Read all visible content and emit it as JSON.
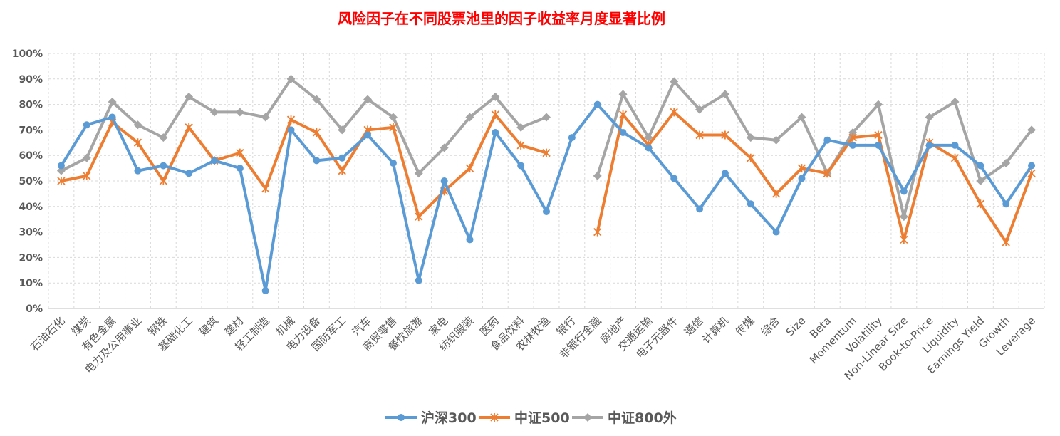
{
  "chart_data": {
    "type": "line",
    "title": "风险因子在不同股票池里的因子收益率月度显著比例",
    "categories": [
      "石油石化",
      "煤炭",
      "有色金属",
      "电力及公用事业",
      "钢铁",
      "基础化工",
      "建筑",
      "建材",
      "轻工制造",
      "机械",
      "电力设备",
      "国防军工",
      "汽车",
      "商贸零售",
      "餐饮旅游",
      "家电",
      "纺织服装",
      "医药",
      "食品饮料",
      "农林牧渔",
      "银行",
      "非银行金融",
      "房地产",
      "交通运输",
      "电子元器件",
      "通信",
      "计算机",
      "传媒",
      "综合",
      "Size",
      "Beta",
      "Momentum",
      "Volatility",
      "Non-Linear Size",
      "Book-to-Price",
      "Liquidity",
      "Earnings Yield",
      "Growth",
      "Leverage"
    ],
    "y_ticks": [
      "0%",
      "10%",
      "20%",
      "30%",
      "40%",
      "50%",
      "60%",
      "70%",
      "80%",
      "90%",
      "100%"
    ],
    "ylim": [
      0,
      100
    ],
    "grid": true,
    "legend_position": "bottom",
    "series": [
      {
        "name": "沪深300",
        "color": "#5b9bd5",
        "marker": "circle",
        "values": [
          56,
          72,
          75,
          54,
          56,
          53,
          58,
          55,
          7,
          70,
          58,
          59,
          68,
          57,
          11,
          50,
          27,
          69,
          56,
          38,
          67,
          80,
          69,
          63,
          51,
          39,
          53,
          41,
          30,
          51,
          66,
          64,
          64,
          46,
          64,
          64,
          56,
          41,
          56
        ]
      },
      {
        "name": "中证500",
        "color": "#ed7d31",
        "marker": "star",
        "values": [
          50,
          52,
          73,
          65,
          50,
          71,
          58,
          61,
          47,
          74,
          69,
          54,
          70,
          71,
          36,
          46,
          55,
          76,
          64,
          61,
          null,
          30,
          76,
          64,
          77,
          68,
          68,
          59,
          45,
          55,
          53,
          67,
          68,
          27,
          65,
          59,
          41,
          26,
          53
        ]
      },
      {
        "name": "中证800外",
        "color": "#a5a5a5",
        "marker": "diamond",
        "values": [
          54,
          59,
          81,
          72,
          67,
          83,
          77,
          77,
          75,
          90,
          82,
          70,
          82,
          75,
          53,
          63,
          75,
          83,
          71,
          75,
          null,
          52,
          84,
          67,
          89,
          78,
          84,
          67,
          66,
          75,
          53,
          69,
          80,
          36,
          75,
          81,
          50,
          57,
          70
        ]
      }
    ]
  }
}
